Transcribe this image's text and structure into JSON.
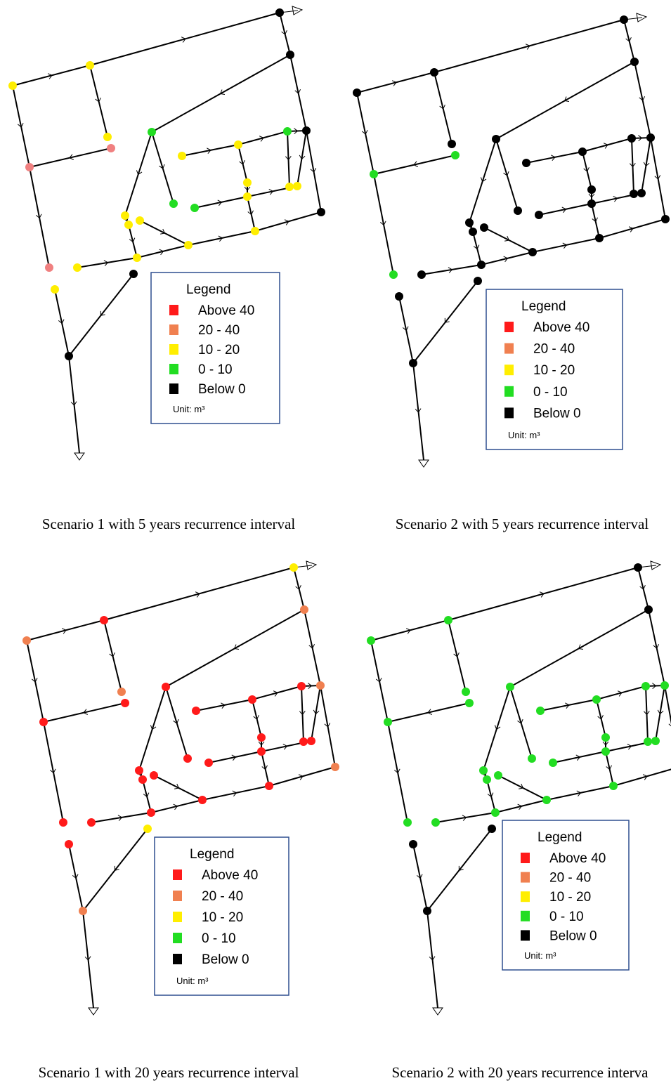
{
  "panels": [
    {
      "caption": "Scenario 1 with 5 years recurrence interval",
      "legend": {
        "title": "Legend",
        "unit": "Unit: m³",
        "items": [
          {
            "label": "Above 40",
            "color": "#ff1a1a"
          },
          {
            "label": "20 - 40",
            "color": "#f08050"
          },
          {
            "label": "10 - 20",
            "color": "#ffee00"
          },
          {
            "label": "0 - 10",
            "color": "#22dd22"
          },
          {
            "label": "Below 0",
            "color": "#000000"
          }
        ]
      }
    },
    {
      "caption": "Scenario 2 with 5 years recurrence interval",
      "legend": {
        "title": "Legend",
        "unit": "Unit: m³",
        "items": [
          {
            "label": "Above 40",
            "color": "#ff1a1a"
          },
          {
            "label": "20 - 40",
            "color": "#f08050"
          },
          {
            "label": "10 - 20",
            "color": "#ffee00"
          },
          {
            "label": "0 - 10",
            "color": "#22dd22"
          },
          {
            "label": "Below 0",
            "color": "#000000"
          }
        ]
      }
    },
    {
      "caption": "Scenario 1 with 20 years recurrence interval",
      "legend": {
        "title": "Legend",
        "unit": "Unit: m³",
        "items": [
          {
            "label": "Above 40",
            "color": "#ff1a1a"
          },
          {
            "label": "20 - 40",
            "color": "#f08050"
          },
          {
            "label": "10 - 20",
            "color": "#ffee00"
          },
          {
            "label": "0 - 10",
            "color": "#22dd22"
          },
          {
            "label": "Below 0",
            "color": "#000000"
          }
        ]
      }
    },
    {
      "caption": "Scenario 2 with 20 years recurrence interva",
      "legend": {
        "title": "Legend",
        "unit": "Unit: m³",
        "items": [
          {
            "label": "Above 40",
            "color": "#ff1a1a"
          },
          {
            "label": "20 - 40",
            "color": "#f08050"
          },
          {
            "label": "10 - 20",
            "color": "#ffee00"
          },
          {
            "label": "0 - 10",
            "color": "#22dd22"
          },
          {
            "label": "Below 0",
            "color": "#000000"
          }
        ]
      }
    }
  ]
}
